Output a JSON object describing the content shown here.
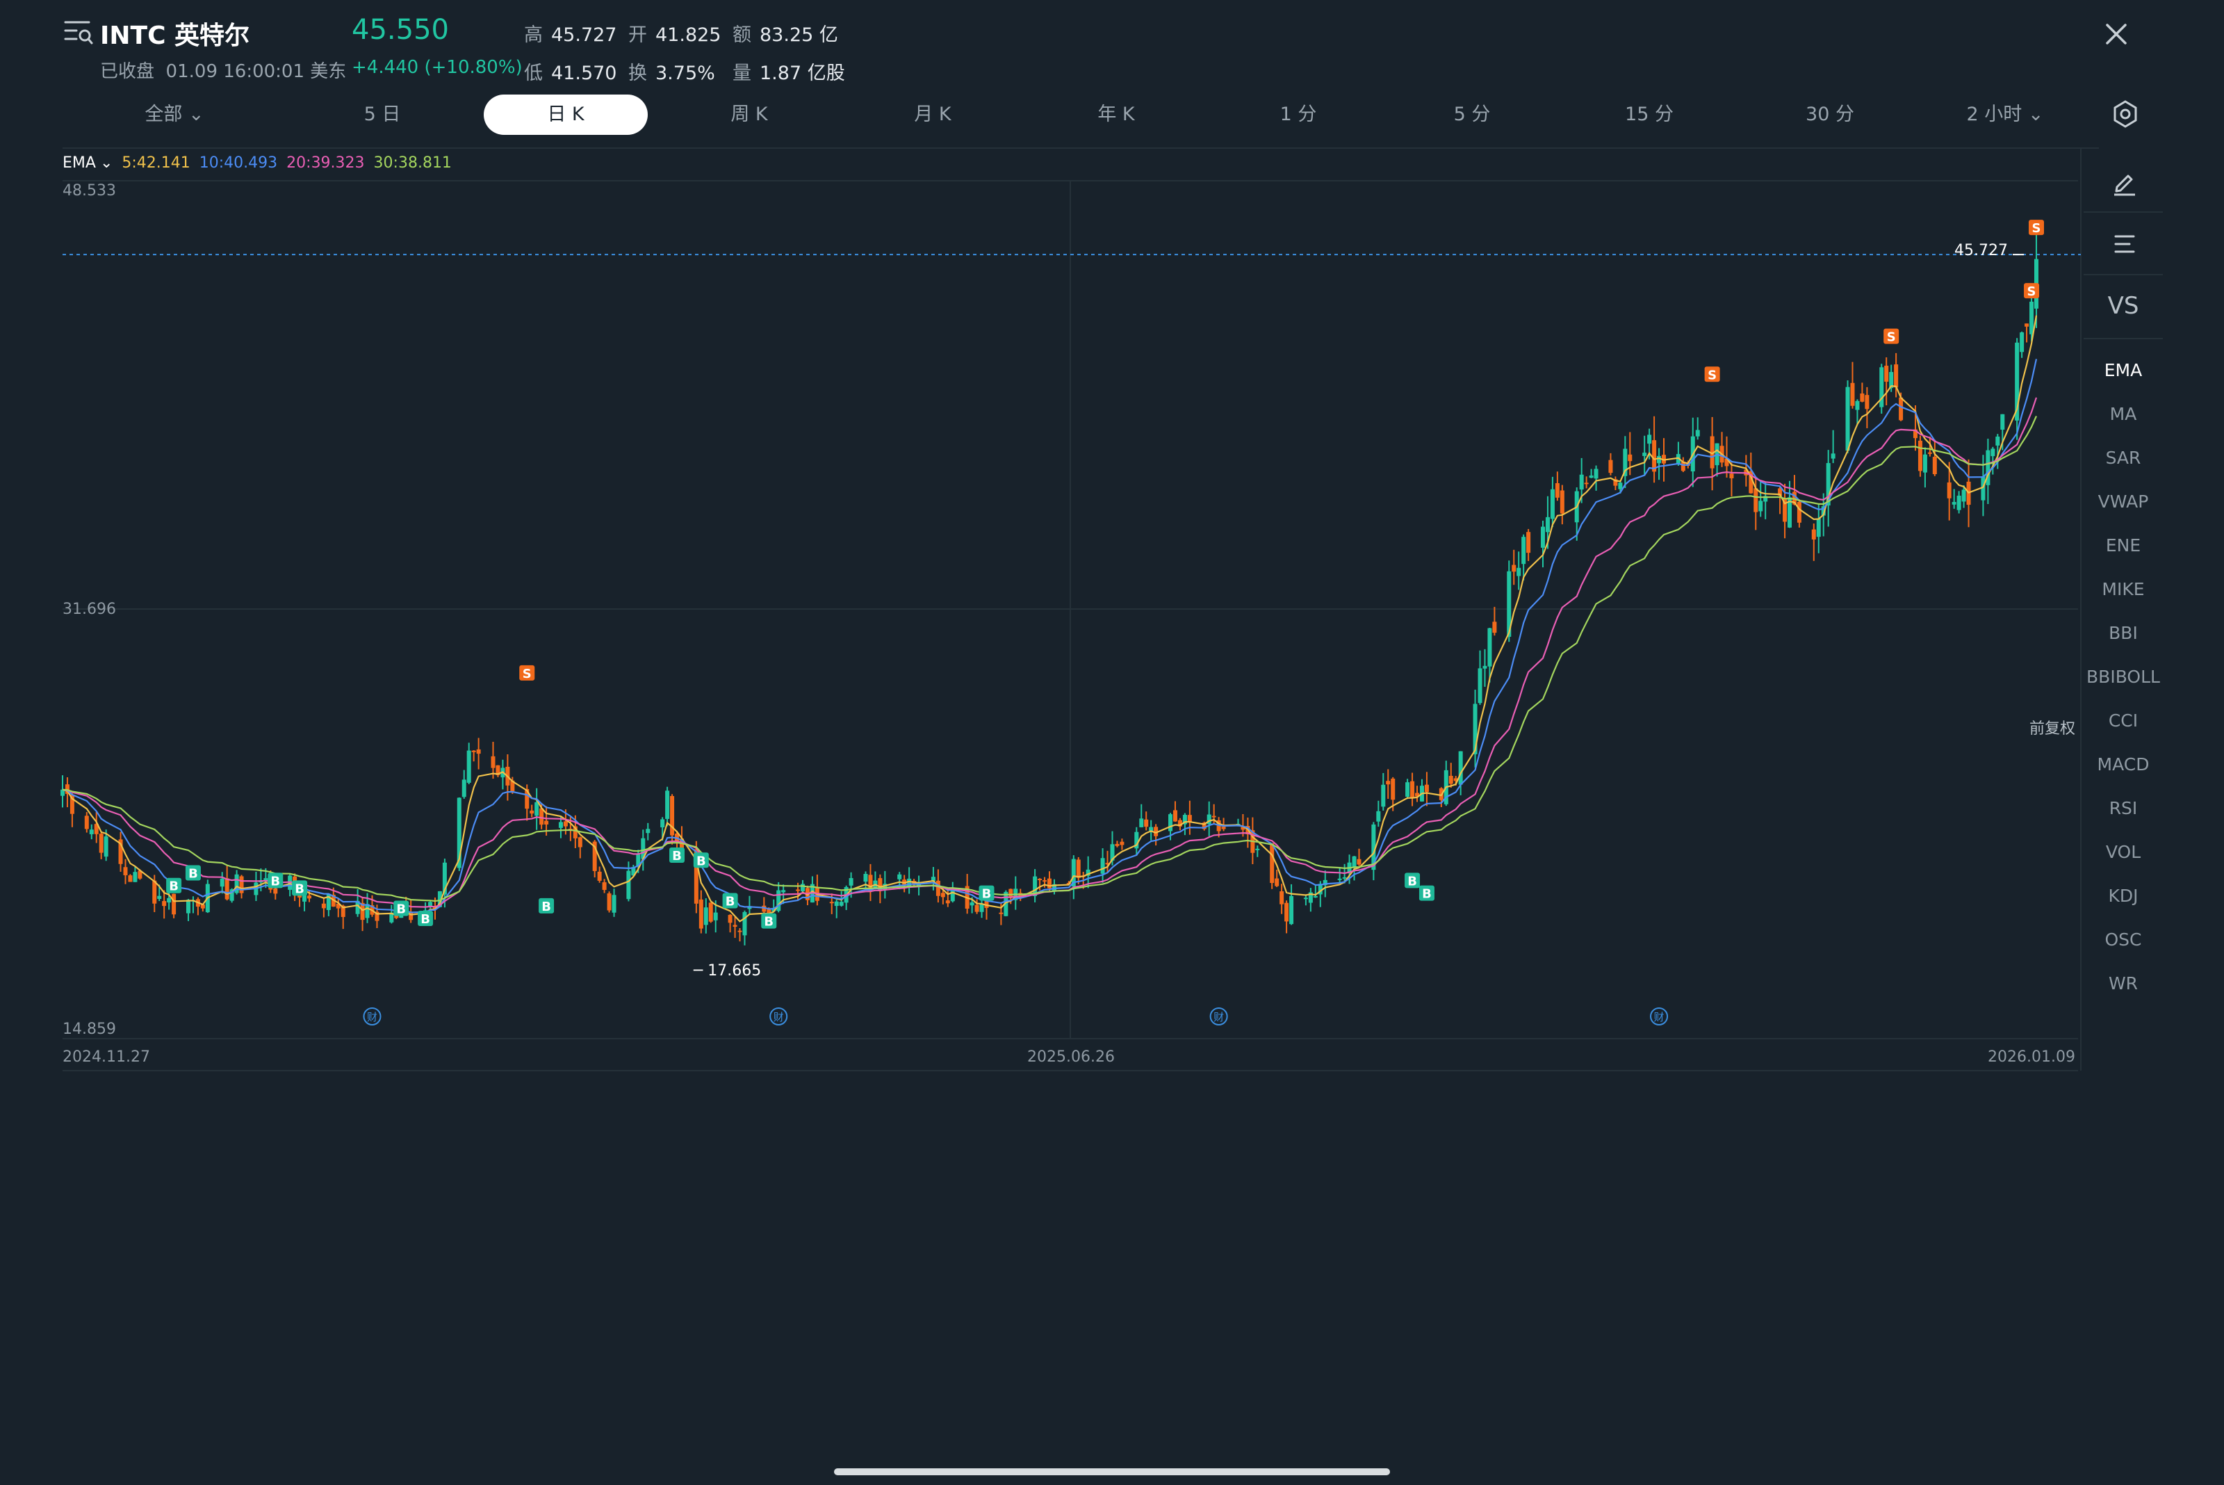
{
  "header": {
    "ticker": "INTC 英特尔",
    "status": "已收盘",
    "datetime": "01.09 16:00:01 美东",
    "price": "45.550",
    "change": "+4.440 (+10.80%)",
    "stats": [
      {
        "key": "高",
        "value": "45.727"
      },
      {
        "key": "开",
        "value": "41.825"
      },
      {
        "key": "额",
        "value": "83.25 亿"
      },
      {
        "key": "低",
        "value": "41.570"
      },
      {
        "key": "换",
        "value": "3.75%"
      },
      {
        "key": "量",
        "value": "1.87 亿股"
      }
    ]
  },
  "tabs": [
    "全部",
    "5 日",
    "日 K",
    "周 K",
    "月 K",
    "年 K",
    "1 分",
    "5 分",
    "15 分",
    "30 分",
    "2 小时"
  ],
  "active_tab": "日 K",
  "ema_legend": {
    "name": "EMA",
    "items": [
      {
        "label": "5:42.141",
        "color": "#f0c14b"
      },
      {
        "label": "10:40.493",
        "color": "#4c8df6"
      },
      {
        "label": "20:39.323",
        "color": "#ea5fb5"
      },
      {
        "label": "30:38.811",
        "color": "#a4d65e"
      }
    ]
  },
  "chart": {
    "y_labels": [
      "48.533",
      "31.696",
      "14.859"
    ],
    "x_labels": [
      "2024.11.27",
      "2025.06.26",
      "2026.01.09"
    ],
    "high_marker": "45.727",
    "low_marker": "17.665",
    "adjust_label": "前复权",
    "event_glyph": "财",
    "buy_glyph": "B",
    "sell_glyph": "S"
  },
  "chart_data": {
    "type": "line",
    "title": "",
    "ylim": [
      14.859,
      48.533
    ],
    "up_color": "#21c6a2",
    "down_color": "#f26a1b",
    "price_path": [
      [
        "2024-11-27",
        24.6
      ],
      [
        "2024-12-10",
        21.3
      ],
      [
        "2024-12-20",
        20.0
      ],
      [
        "2025-01-06",
        21.0
      ],
      [
        "2025-01-15",
        20.6
      ],
      [
        "2025-01-28",
        19.7
      ],
      [
        "2025-02-05",
        19.6
      ],
      [
        "2025-02-12",
        20.3
      ],
      [
        "2025-02-20",
        26.3
      ],
      [
        "2025-02-28",
        24.6
      ],
      [
        "2025-03-10",
        23.0
      ],
      [
        "2025-03-20",
        20.3
      ],
      [
        "2025-04-01",
        24.0
      ],
      [
        "2025-04-08",
        19.5
      ],
      [
        "2025-04-15",
        19.2
      ],
      [
        "2025-04-24",
        20.4
      ],
      [
        "2025-05-06",
        20.6
      ],
      [
        "2025-05-20",
        21.3
      ],
      [
        "2025-06-06",
        20.0
      ],
      [
        "2025-06-20",
        21.0
      ],
      [
        "2025-07-10",
        23.2
      ],
      [
        "2025-07-28",
        23.0
      ],
      [
        "2025-08-07",
        19.8
      ],
      [
        "2025-08-20",
        21.3
      ],
      [
        "2025-08-28",
        24.6
      ],
      [
        "2025-09-10",
        24.8
      ],
      [
        "2025-09-18",
        30.6
      ],
      [
        "2025-09-26",
        34.5
      ],
      [
        "2025-10-06",
        37.0
      ],
      [
        "2025-10-16",
        37.6
      ],
      [
        "2025-10-24",
        38.0
      ],
      [
        "2025-11-04",
        38.2
      ],
      [
        "2025-11-14",
        35.5
      ],
      [
        "2025-11-24",
        35.2
      ],
      [
        "2025-12-02",
        40.2
      ],
      [
        "2025-12-10",
        40.5
      ],
      [
        "2025-12-18",
        37.0
      ],
      [
        "2025-12-24",
        36.1
      ],
      [
        "2025-12-31",
        37.6
      ],
      [
        "2026-01-09",
        45.55
      ]
    ],
    "ema": [
      {
        "name": "EMA5",
        "value": 42.141
      },
      {
        "name": "EMA10",
        "value": 40.493
      },
      {
        "name": "EMA20",
        "value": 39.323
      },
      {
        "name": "EMA30",
        "value": 38.811
      }
    ],
    "high": 45.727,
    "low": 17.665
  },
  "sidebar": {
    "tools": [
      "pencil-icon",
      "lines-icon"
    ],
    "vs_label": "VS",
    "indicators": [
      "EMA",
      "MA",
      "SAR",
      "VWAP",
      "ENE",
      "MIKE",
      "BBI",
      "BBIBOLL",
      "CCI",
      "MACD",
      "RSI",
      "VOL",
      "KDJ",
      "OSC",
      "WR"
    ],
    "active_indicator": "EMA"
  }
}
